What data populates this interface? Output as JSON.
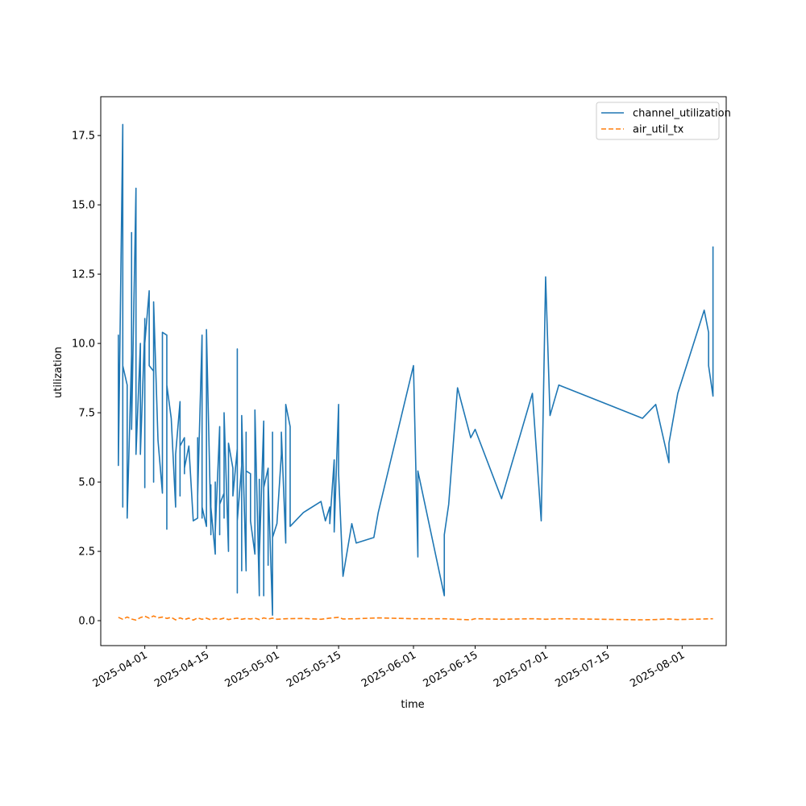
{
  "chart_data": {
    "type": "line",
    "xlabel": "time",
    "ylabel": "utilization",
    "xlim": [
      "2025-03-22",
      "2025-08-11"
    ],
    "ylim": [
      -0.9,
      18.9
    ],
    "grid": false,
    "legend_position": "top-right",
    "x_ticks": [
      "2025-04-01",
      "2025-04-15",
      "2025-05-01",
      "2025-05-15",
      "2025-06-01",
      "2025-06-15",
      "2025-07-01",
      "2025-07-15",
      "2025-08-01"
    ],
    "y_ticks": [
      "0.0",
      "2.5",
      "5.0",
      "7.5",
      "10.0",
      "12.5",
      "15.0",
      "17.5"
    ],
    "series": [
      {
        "name": "channel_utilization",
        "color": "#1f77b4",
        "style": "solid",
        "points": [
          [
            "2025-03-26",
            7.7
          ],
          [
            "2025-03-26",
            7.0
          ],
          [
            "2025-03-26",
            10.3
          ],
          [
            "2025-03-26",
            5.6
          ],
          [
            "2025-03-27",
            17.9
          ],
          [
            "2025-03-27",
            5.6
          ],
          [
            "2025-03-27",
            4.9
          ],
          [
            "2025-03-27",
            4.1
          ],
          [
            "2025-03-27",
            9.2
          ],
          [
            "2025-03-28",
            8.5
          ],
          [
            "2025-03-28",
            7.6
          ],
          [
            "2025-03-28",
            3.7
          ],
          [
            "2025-03-29",
            9.6
          ],
          [
            "2025-03-29",
            7.3
          ],
          [
            "2025-03-29",
            14.0
          ],
          [
            "2025-03-29",
            6.9
          ],
          [
            "2025-03-30",
            15.6
          ],
          [
            "2025-03-30",
            6.7
          ],
          [
            "2025-03-30",
            7.1
          ],
          [
            "2025-03-30",
            6.0
          ],
          [
            "2025-03-31",
            10.0
          ],
          [
            "2025-03-31",
            8.5
          ],
          [
            "2025-03-31",
            6.0
          ],
          [
            "2025-04-01",
            10.6
          ],
          [
            "2025-04-01",
            4.8
          ],
          [
            "2025-04-01",
            10.9
          ],
          [
            "2025-04-01",
            8.0
          ],
          [
            "2025-04-01",
            10.0
          ],
          [
            "2025-04-02",
            11.9
          ],
          [
            "2025-04-02",
            9.2
          ],
          [
            "2025-04-03",
            9.0
          ],
          [
            "2025-04-03",
            5.0
          ],
          [
            "2025-04-03",
            11.5
          ],
          [
            "2025-04-04",
            6.5
          ],
          [
            "2025-04-05",
            4.6
          ],
          [
            "2025-04-05",
            10.4
          ],
          [
            "2025-04-06",
            10.3
          ],
          [
            "2025-04-06",
            3.3
          ],
          [
            "2025-04-06",
            8.5
          ],
          [
            "2025-04-07",
            7.3
          ],
          [
            "2025-04-08",
            4.1
          ],
          [
            "2025-04-08",
            6.0
          ],
          [
            "2025-04-09",
            7.9
          ],
          [
            "2025-04-09",
            4.5
          ],
          [
            "2025-04-09",
            6.3
          ],
          [
            "2025-04-10",
            6.6
          ],
          [
            "2025-04-10",
            5.3
          ],
          [
            "2025-04-10",
            5.5
          ],
          [
            "2025-04-11",
            6.3
          ],
          [
            "2025-04-12",
            3.6
          ],
          [
            "2025-04-13",
            3.7
          ],
          [
            "2025-04-13",
            6.6
          ],
          [
            "2025-04-13",
            4.5
          ],
          [
            "2025-04-14",
            10.3
          ],
          [
            "2025-04-14",
            3.7
          ],
          [
            "2025-04-14",
            6.3
          ],
          [
            "2025-04-14",
            4.1
          ],
          [
            "2025-04-15",
            3.4
          ],
          [
            "2025-04-15",
            5.4
          ],
          [
            "2025-04-15",
            3.4
          ],
          [
            "2025-04-15",
            10.5
          ],
          [
            "2025-04-16",
            3.4
          ],
          [
            "2025-04-16",
            4.9
          ],
          [
            "2025-04-16",
            3.1
          ],
          [
            "2025-04-16",
            4.1
          ],
          [
            "2025-04-17",
            2.4
          ],
          [
            "2025-04-17",
            4.9
          ],
          [
            "2025-04-17",
            4.0
          ],
          [
            "2025-04-17",
            5.0
          ],
          [
            "2025-04-17",
            3.2
          ],
          [
            "2025-04-18",
            7.0
          ],
          [
            "2025-04-18",
            3.1
          ],
          [
            "2025-04-18",
            4.9
          ],
          [
            "2025-04-18",
            4.2
          ],
          [
            "2025-04-19",
            4.6
          ],
          [
            "2025-04-19",
            3.7
          ],
          [
            "2025-04-19",
            7.5
          ],
          [
            "2025-04-20",
            2.5
          ],
          [
            "2025-04-20",
            6.4
          ],
          [
            "2025-04-21",
            5.5
          ],
          [
            "2025-04-21",
            4.5
          ],
          [
            "2025-04-22",
            6.2
          ],
          [
            "2025-04-22",
            1.0
          ],
          [
            "2025-04-22",
            9.8
          ],
          [
            "2025-04-22",
            3.6
          ],
          [
            "2025-04-23",
            5.6
          ],
          [
            "2025-04-23",
            1.8
          ],
          [
            "2025-04-23",
            4.0
          ],
          [
            "2025-04-23",
            7.4
          ],
          [
            "2025-04-24",
            1.8
          ],
          [
            "2025-04-24",
            6.8
          ],
          [
            "2025-04-24",
            5.4
          ],
          [
            "2025-04-25",
            5.3
          ],
          [
            "2025-04-25",
            3.6
          ],
          [
            "2025-04-26",
            2.4
          ],
          [
            "2025-04-26",
            7.6
          ],
          [
            "2025-04-27",
            0.9
          ],
          [
            "2025-04-27",
            5.1
          ],
          [
            "2025-04-27",
            4.8
          ],
          [
            "2025-04-27",
            2.3
          ],
          [
            "2025-04-28",
            7.2
          ],
          [
            "2025-04-28",
            2.0
          ],
          [
            "2025-04-28",
            0.9
          ],
          [
            "2025-04-28",
            4.8
          ],
          [
            "2025-04-29",
            5.5
          ],
          [
            "2025-04-29",
            2.0
          ],
          [
            "2025-04-29",
            5.1
          ],
          [
            "2025-04-30",
            0.2
          ],
          [
            "2025-04-30",
            3.6
          ],
          [
            "2025-04-30",
            6.8
          ],
          [
            "2025-04-30",
            3.0
          ],
          [
            "2025-05-01",
            3.5
          ],
          [
            "2025-05-02",
            6.0
          ],
          [
            "2025-05-02",
            6.8
          ],
          [
            "2025-05-03",
            2.8
          ],
          [
            "2025-05-03",
            7.8
          ],
          [
            "2025-05-04",
            7.0
          ],
          [
            "2025-05-04",
            3.4
          ],
          [
            "2025-05-07",
            3.9
          ],
          [
            "2025-05-11",
            4.3
          ],
          [
            "2025-05-12",
            3.6
          ],
          [
            "2025-05-13",
            4.1
          ],
          [
            "2025-05-13",
            3.5
          ],
          [
            "2025-05-14",
            5.8
          ],
          [
            "2025-05-14",
            3.2
          ],
          [
            "2025-05-15",
            7.8
          ],
          [
            "2025-05-15",
            5.3
          ],
          [
            "2025-05-16",
            1.6
          ],
          [
            "2025-05-18",
            3.5
          ],
          [
            "2025-05-19",
            2.8
          ],
          [
            "2025-05-23",
            3.0
          ],
          [
            "2025-05-24",
            3.9
          ],
          [
            "2025-06-01",
            9.2
          ],
          [
            "2025-06-02",
            2.3
          ],
          [
            "2025-06-02",
            5.4
          ],
          [
            "2025-06-08",
            0.9
          ],
          [
            "2025-06-08",
            3.1
          ],
          [
            "2025-06-09",
            4.2
          ],
          [
            "2025-06-11",
            8.4
          ],
          [
            "2025-06-14",
            6.6
          ],
          [
            "2025-06-15",
            6.9
          ],
          [
            "2025-06-21",
            4.4
          ],
          [
            "2025-06-28",
            8.2
          ],
          [
            "2025-06-30",
            3.6
          ],
          [
            "2025-07-01",
            12.4
          ],
          [
            "2025-07-02",
            7.4
          ],
          [
            "2025-07-04",
            8.5
          ],
          [
            "2025-07-23",
            7.3
          ],
          [
            "2025-07-26",
            7.8
          ],
          [
            "2025-07-29",
            5.7
          ],
          [
            "2025-07-29",
            6.4
          ],
          [
            "2025-07-31",
            8.2
          ],
          [
            "2025-08-06",
            11.2
          ],
          [
            "2025-08-07",
            10.4
          ],
          [
            "2025-08-07",
            9.2
          ],
          [
            "2025-08-08",
            8.1
          ],
          [
            "2025-08-08",
            10.0
          ],
          [
            "2025-08-08",
            13.5
          ]
        ]
      },
      {
        "name": "air_util_tx",
        "color": "#ff7f0e",
        "style": "dashed",
        "points": [
          [
            "2025-03-26",
            0.12
          ],
          [
            "2025-03-27",
            0.05
          ],
          [
            "2025-03-28",
            0.13
          ],
          [
            "2025-03-29",
            0.06
          ],
          [
            "2025-03-30",
            0.02
          ],
          [
            "2025-03-31",
            0.11
          ],
          [
            "2025-04-01",
            0.16
          ],
          [
            "2025-04-02",
            0.09
          ],
          [
            "2025-04-03",
            0.17
          ],
          [
            "2025-04-04",
            0.1
          ],
          [
            "2025-04-05",
            0.13
          ],
          [
            "2025-04-06",
            0.08
          ],
          [
            "2025-04-07",
            0.12
          ],
          [
            "2025-04-08",
            0.03
          ],
          [
            "2025-04-09",
            0.1
          ],
          [
            "2025-04-10",
            0.04
          ],
          [
            "2025-04-11",
            0.09
          ],
          [
            "2025-04-12",
            0.02
          ],
          [
            "2025-04-13",
            0.1
          ],
          [
            "2025-04-14",
            0.05
          ],
          [
            "2025-04-15",
            0.09
          ],
          [
            "2025-04-16",
            0.03
          ],
          [
            "2025-04-17",
            0.08
          ],
          [
            "2025-04-18",
            0.05
          ],
          [
            "2025-04-19",
            0.09
          ],
          [
            "2025-04-20",
            0.04
          ],
          [
            "2025-04-21",
            0.07
          ],
          [
            "2025-04-22",
            0.09
          ],
          [
            "2025-04-23",
            0.05
          ],
          [
            "2025-04-24",
            0.08
          ],
          [
            "2025-04-25",
            0.06
          ],
          [
            "2025-04-26",
            0.09
          ],
          [
            "2025-04-27",
            0.04
          ],
          [
            "2025-04-28",
            0.1
          ],
          [
            "2025-04-29",
            0.06
          ],
          [
            "2025-04-30",
            0.09
          ],
          [
            "2025-05-01",
            0.05
          ],
          [
            "2025-05-03",
            0.07
          ],
          [
            "2025-05-07",
            0.08
          ],
          [
            "2025-05-11",
            0.05
          ],
          [
            "2025-05-13",
            0.09
          ],
          [
            "2025-05-15",
            0.12
          ],
          [
            "2025-05-16",
            0.06
          ],
          [
            "2025-05-19",
            0.07
          ],
          [
            "2025-05-24",
            0.1
          ],
          [
            "2025-06-01",
            0.07
          ],
          [
            "2025-06-08",
            0.07
          ],
          [
            "2025-06-14",
            0.03
          ],
          [
            "2025-06-15",
            0.07
          ],
          [
            "2025-06-21",
            0.05
          ],
          [
            "2025-06-28",
            0.07
          ],
          [
            "2025-07-01",
            0.05
          ],
          [
            "2025-07-04",
            0.07
          ],
          [
            "2025-07-23",
            0.03
          ],
          [
            "2025-07-26",
            0.04
          ],
          [
            "2025-07-29",
            0.06
          ],
          [
            "2025-07-31",
            0.04
          ],
          [
            "2025-08-06",
            0.06
          ],
          [
            "2025-08-08",
            0.07
          ]
        ]
      }
    ]
  }
}
